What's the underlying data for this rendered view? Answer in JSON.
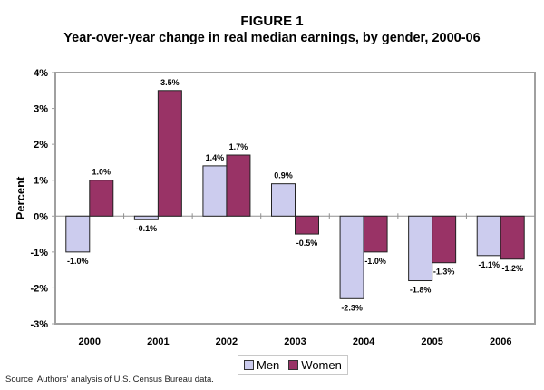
{
  "chart_data": {
    "type": "bar",
    "title": "FIGURE 1",
    "subtitle": "Year-over-year change in real median earnings, by gender, 2000-06",
    "xlabel": "",
    "ylabel": "Percent",
    "ylim": [
      -3,
      4
    ],
    "yticks": [
      4,
      3,
      2,
      1,
      0,
      -1,
      -2,
      -3
    ],
    "ytick_labels": [
      "4%",
      "3%",
      "2%",
      "1%",
      "0%",
      "-1%",
      "-2%",
      "-3%"
    ],
    "categories": [
      "2000",
      "2001",
      "2002",
      "2003",
      "2004",
      "2005",
      "2006"
    ],
    "series": [
      {
        "name": "Men",
        "color": "#ccccee",
        "values": [
          -1.0,
          -0.1,
          1.4,
          0.9,
          -2.3,
          -1.8,
          -1.1
        ],
        "labels": [
          "-1.0%",
          "-0.1%",
          "1.4%",
          "0.9%",
          "-2.3%",
          "-1.8%",
          "-1.1%"
        ]
      },
      {
        "name": "Women",
        "color": "#993366",
        "values": [
          1.0,
          3.5,
          1.7,
          -0.5,
          -1.0,
          -1.3,
          -1.2
        ],
        "labels": [
          "1.0%",
          "3.5%",
          "1.7%",
          "-0.5%",
          "-1.0%",
          "-1.3%",
          "-1.2%"
        ]
      }
    ],
    "grid": false,
    "legend_position": "bottom-center"
  },
  "source": "Source: Authors' analysis of U.S. Census Bureau data."
}
